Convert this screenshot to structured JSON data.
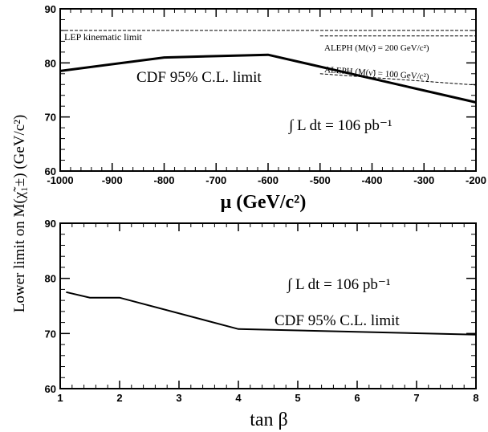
{
  "chart_data": [
    {
      "type": "line",
      "xlabel": "μ (GeV/c²)",
      "x_ticks": [
        -1000,
        -900,
        -800,
        -700,
        -600,
        -500,
        -400,
        -300,
        -200
      ],
      "y_ticks": [
        60,
        70,
        80,
        90
      ],
      "xlim": [
        -1000,
        -200
      ],
      "ylim": [
        60,
        90
      ],
      "grid": false,
      "series": [
        {
          "name": "CDF 95% C.L. limit",
          "style": "solid-thick",
          "x": [
            -1000,
            -800,
            -600,
            -200
          ],
          "y": [
            78.5,
            81.0,
            81.5,
            72.7
          ]
        },
        {
          "name": "LEP kinematic limit",
          "style": "dashed",
          "x": [
            -1000,
            -200
          ],
          "y": [
            86.0,
            86.0
          ]
        },
        {
          "name": "ALEPH (M(ν̃) = 200 GeV/c²)",
          "style": "dashed",
          "x": [
            -500,
            -200
          ],
          "y": [
            85.0,
            85.0
          ]
        },
        {
          "name": "ALEPH (M(ν̃) = 100 GeV/c²)",
          "style": "dashed",
          "x": [
            -500,
            -200
          ],
          "y": [
            78.0,
            75.9
          ]
        }
      ],
      "annotations": {
        "lep": "LEP kinematic limit",
        "aleph200": "ALEPH (M(ν̃) = 200 GeV/c²)",
        "aleph100": "ALEPH (M(ν̃) = 100 GeV/c²)",
        "cdf": "CDF 95% C.L. limit",
        "lumi": "∫ L dt = 106 pb⁻¹"
      }
    },
    {
      "type": "line",
      "xlabel": "tan β",
      "x_ticks": [
        1,
        2,
        3,
        4,
        5,
        6,
        7,
        8
      ],
      "y_ticks": [
        60,
        70,
        80,
        90
      ],
      "xlim": [
        1,
        8
      ],
      "ylim": [
        60,
        90
      ],
      "grid": false,
      "series": [
        {
          "name": "CDF 95% C.L. limit",
          "style": "solid",
          "x": [
            1.1,
            1.5,
            2.0,
            4.0,
            8.0
          ],
          "y": [
            77.5,
            76.5,
            76.5,
            70.8,
            69.8
          ]
        }
      ],
      "annotations": {
        "cdf": "CDF 95% C.L. limit",
        "lumi": "∫ L dt = 106 pb⁻¹"
      }
    }
  ],
  "shared_ylabel": "Lower limit on M(χ̃₁±) (GeV/c²)"
}
